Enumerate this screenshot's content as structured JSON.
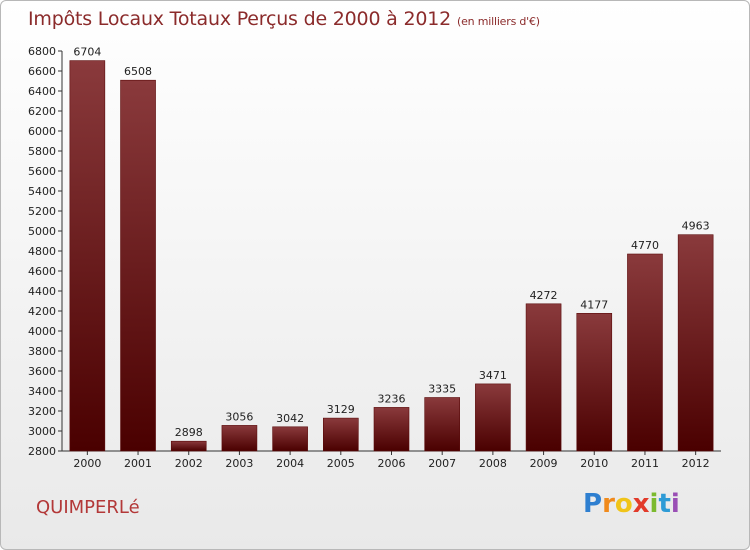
{
  "header": {
    "title": "Impôts Locaux Totaux Perçus de 2000 à 2012",
    "unit": "(en milliers d'€)"
  },
  "footer": {
    "town": "QUIMPERLé",
    "brand": [
      "P",
      "r",
      "o",
      "x",
      "i",
      "t",
      "i"
    ],
    "brand_colors": [
      "#2e7fd0",
      "#f08a1c",
      "#f0c419",
      "#e23a2a",
      "#7cba2f",
      "#2e9bd6",
      "#9a4fb5"
    ]
  },
  "colors": {
    "bar_top": "#8a3a3c",
    "bar_bottom": "#4a0000",
    "bar_edge": "#5a0a0a"
  },
  "chart_data": {
    "type": "bar",
    "title": "Impôts Locaux Totaux Perçus de 2000 à 2012",
    "xlabel": "",
    "ylabel": "",
    "categories": [
      "2000",
      "2001",
      "2002",
      "2003",
      "2004",
      "2005",
      "2006",
      "2007",
      "2008",
      "2009",
      "2010",
      "2011",
      "2012"
    ],
    "values": [
      6704,
      6508,
      2898,
      3056,
      3042,
      3129,
      3236,
      3335,
      3471,
      4272,
      4177,
      4770,
      4963
    ],
    "ylim": [
      2800,
      6800
    ],
    "yticks": [
      2800,
      3000,
      3200,
      3400,
      3600,
      3800,
      4000,
      4200,
      4400,
      4600,
      4800,
      5000,
      5200,
      5400,
      5600,
      5800,
      6000,
      6200,
      6400,
      6600,
      6800
    ],
    "grid": false
  }
}
